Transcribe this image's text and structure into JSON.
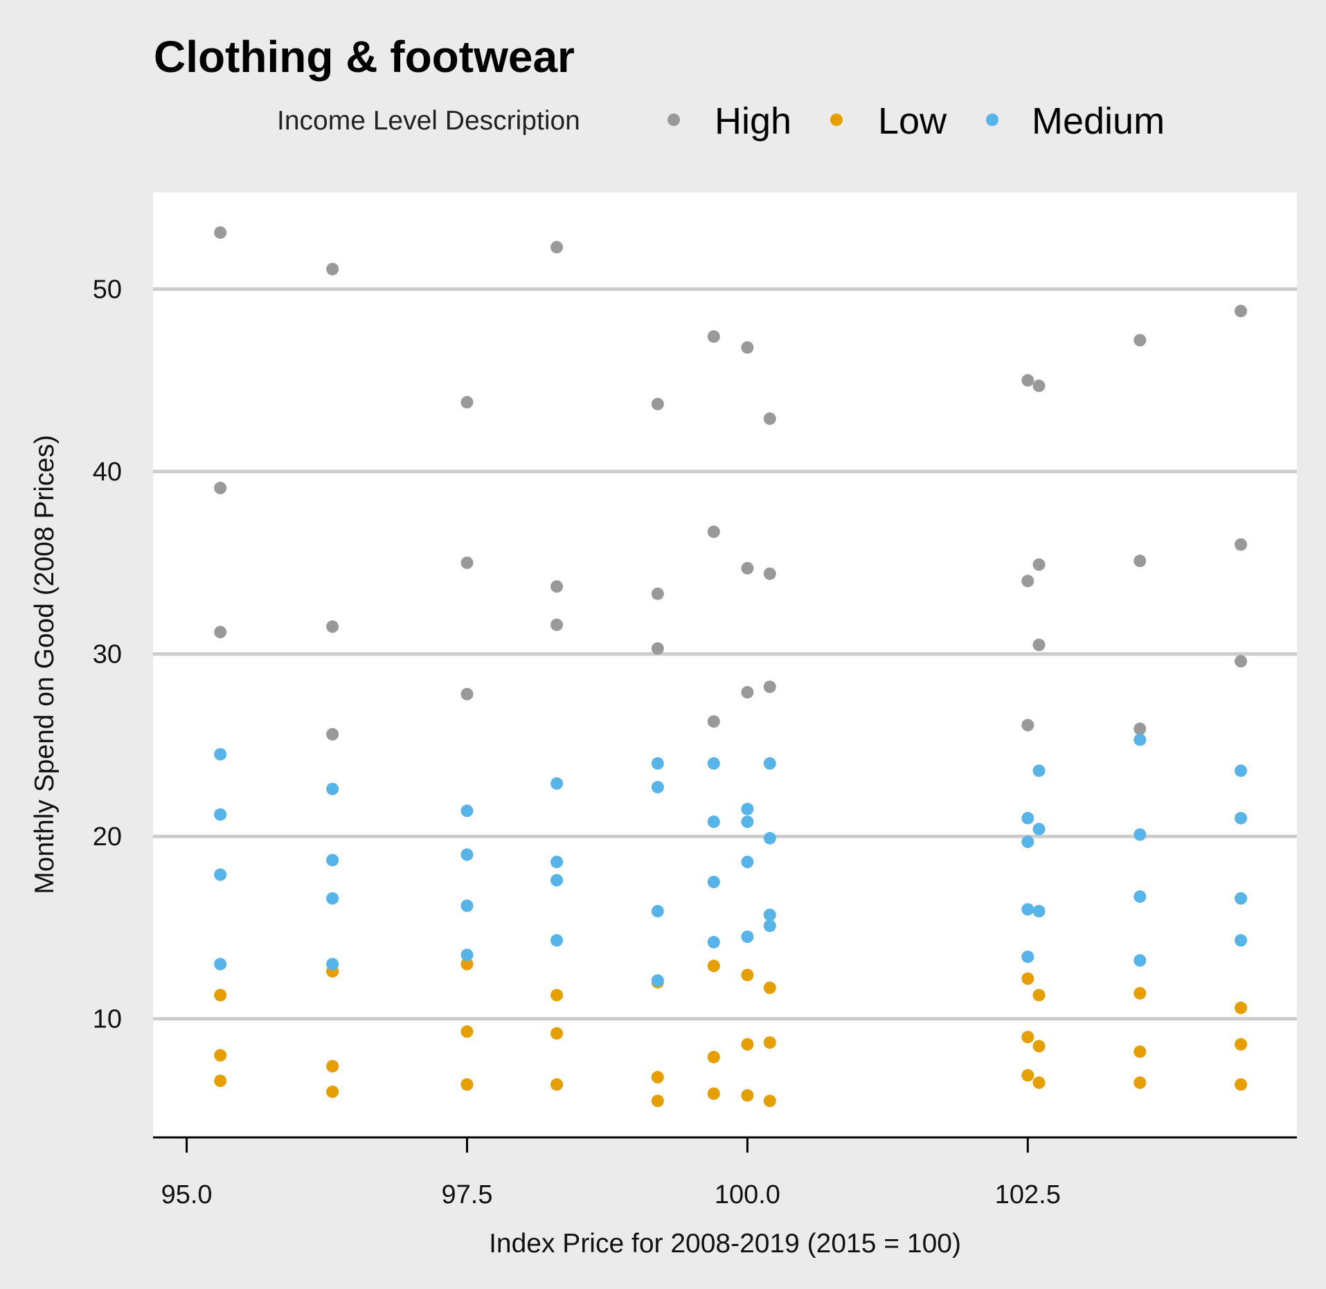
{
  "chart_data": {
    "type": "scatter",
    "title": "Clothing & footwear",
    "xlabel": "Index Price for 2008-2019 (2015 = 100)",
    "ylabel": "Monthly Spend on Good (2008 Prices)",
    "xlim": [
      94.7,
      104.9
    ],
    "ylim": [
      3.5,
      55.3
    ],
    "x_ticks": [
      95.0,
      97.5,
      100.0,
      102.5
    ],
    "x_tick_labels": [
      "95.0",
      "97.5",
      "100.0",
      "102.5"
    ],
    "y_ticks": [
      10,
      20,
      30,
      40,
      50
    ],
    "y_tick_labels": [
      "10",
      "20",
      "30",
      "40",
      "50"
    ],
    "grid": "horizontal major lines",
    "legend": {
      "title": "Income Level Description",
      "position": "top"
    },
    "series": [
      {
        "name": "High",
        "color": "#999999",
        "points": [
          [
            95.3,
            53.1
          ],
          [
            95.3,
            39.1
          ],
          [
            95.3,
            31.2
          ],
          [
            96.3,
            51.1
          ],
          [
            96.3,
            31.5
          ],
          [
            96.3,
            25.6
          ],
          [
            97.5,
            43.8
          ],
          [
            97.5,
            35.0
          ],
          [
            97.5,
            27.8
          ],
          [
            98.3,
            52.3
          ],
          [
            98.3,
            33.7
          ],
          [
            98.3,
            31.6
          ],
          [
            99.2,
            43.7
          ],
          [
            99.2,
            33.3
          ],
          [
            99.2,
            30.3
          ],
          [
            99.7,
            47.4
          ],
          [
            99.7,
            36.7
          ],
          [
            99.7,
            26.3
          ],
          [
            100.0,
            46.8
          ],
          [
            100.0,
            34.7
          ],
          [
            100.0,
            27.9
          ],
          [
            100.2,
            42.9
          ],
          [
            100.2,
            34.4
          ],
          [
            100.2,
            28.2
          ],
          [
            102.5,
            45.0
          ],
          [
            102.5,
            34.0
          ],
          [
            102.5,
            26.1
          ],
          [
            102.6,
            44.7
          ],
          [
            102.6,
            34.9
          ],
          [
            102.6,
            30.5
          ],
          [
            103.5,
            47.2
          ],
          [
            103.5,
            35.1
          ],
          [
            103.5,
            25.9
          ],
          [
            104.4,
            48.8
          ],
          [
            104.4,
            36.0
          ],
          [
            104.4,
            29.6
          ]
        ]
      },
      {
        "name": "Low",
        "color": "#E69F00",
        "points": [
          [
            95.3,
            11.3
          ],
          [
            95.3,
            8.0
          ],
          [
            95.3,
            6.6
          ],
          [
            96.3,
            12.6
          ],
          [
            96.3,
            7.4
          ],
          [
            96.3,
            6.0
          ],
          [
            97.5,
            13.0
          ],
          [
            97.5,
            9.3
          ],
          [
            97.5,
            6.4
          ],
          [
            98.3,
            11.3
          ],
          [
            98.3,
            9.2
          ],
          [
            98.3,
            6.4
          ],
          [
            99.2,
            12.0
          ],
          [
            99.2,
            6.8
          ],
          [
            99.2,
            5.5
          ],
          [
            99.7,
            12.9
          ],
          [
            99.7,
            7.9
          ],
          [
            99.7,
            5.9
          ],
          [
            100.0,
            12.4
          ],
          [
            100.0,
            8.6
          ],
          [
            100.0,
            5.8
          ],
          [
            100.2,
            11.7
          ],
          [
            100.2,
            8.7
          ],
          [
            100.2,
            5.5
          ],
          [
            102.5,
            12.2
          ],
          [
            102.5,
            9.0
          ],
          [
            102.5,
            6.9
          ],
          [
            102.6,
            11.3
          ],
          [
            102.6,
            8.5
          ],
          [
            102.6,
            6.5
          ],
          [
            103.5,
            11.4
          ],
          [
            103.5,
            8.2
          ],
          [
            103.5,
            6.5
          ],
          [
            104.4,
            10.6
          ],
          [
            104.4,
            8.6
          ],
          [
            104.4,
            6.4
          ]
        ]
      },
      {
        "name": "Medium",
        "color": "#56B4E9",
        "points": [
          [
            95.3,
            24.5
          ],
          [
            95.3,
            21.2
          ],
          [
            95.3,
            17.9
          ],
          [
            95.3,
            13.0
          ],
          [
            96.3,
            22.6
          ],
          [
            96.3,
            18.7
          ],
          [
            96.3,
            16.6
          ],
          [
            96.3,
            13.0
          ],
          [
            97.5,
            21.4
          ],
          [
            97.5,
            19.0
          ],
          [
            97.5,
            16.2
          ],
          [
            97.5,
            13.5
          ],
          [
            98.3,
            22.9
          ],
          [
            98.3,
            18.6
          ],
          [
            98.3,
            17.6
          ],
          [
            98.3,
            14.3
          ],
          [
            99.2,
            24.0
          ],
          [
            99.2,
            22.7
          ],
          [
            99.2,
            15.9
          ],
          [
            99.2,
            12.1
          ],
          [
            99.7,
            24.0
          ],
          [
            99.7,
            20.8
          ],
          [
            99.7,
            17.5
          ],
          [
            99.7,
            14.2
          ],
          [
            100.0,
            21.5
          ],
          [
            100.0,
            20.8
          ],
          [
            100.0,
            18.6
          ],
          [
            100.0,
            14.5
          ],
          [
            100.2,
            24.0
          ],
          [
            100.2,
            19.9
          ],
          [
            100.2,
            15.7
          ],
          [
            100.2,
            15.1
          ],
          [
            102.5,
            21.0
          ],
          [
            102.5,
            19.7
          ],
          [
            102.5,
            16.0
          ],
          [
            102.5,
            13.4
          ],
          [
            102.6,
            23.6
          ],
          [
            102.6,
            20.4
          ],
          [
            102.6,
            15.9
          ],
          [
            103.5,
            25.3
          ],
          [
            103.5,
            20.1
          ],
          [
            103.5,
            16.7
          ],
          [
            103.5,
            13.2
          ],
          [
            104.4,
            23.6
          ],
          [
            104.4,
            21.0
          ],
          [
            104.4,
            16.6
          ],
          [
            104.4,
            14.3
          ]
        ]
      }
    ]
  }
}
